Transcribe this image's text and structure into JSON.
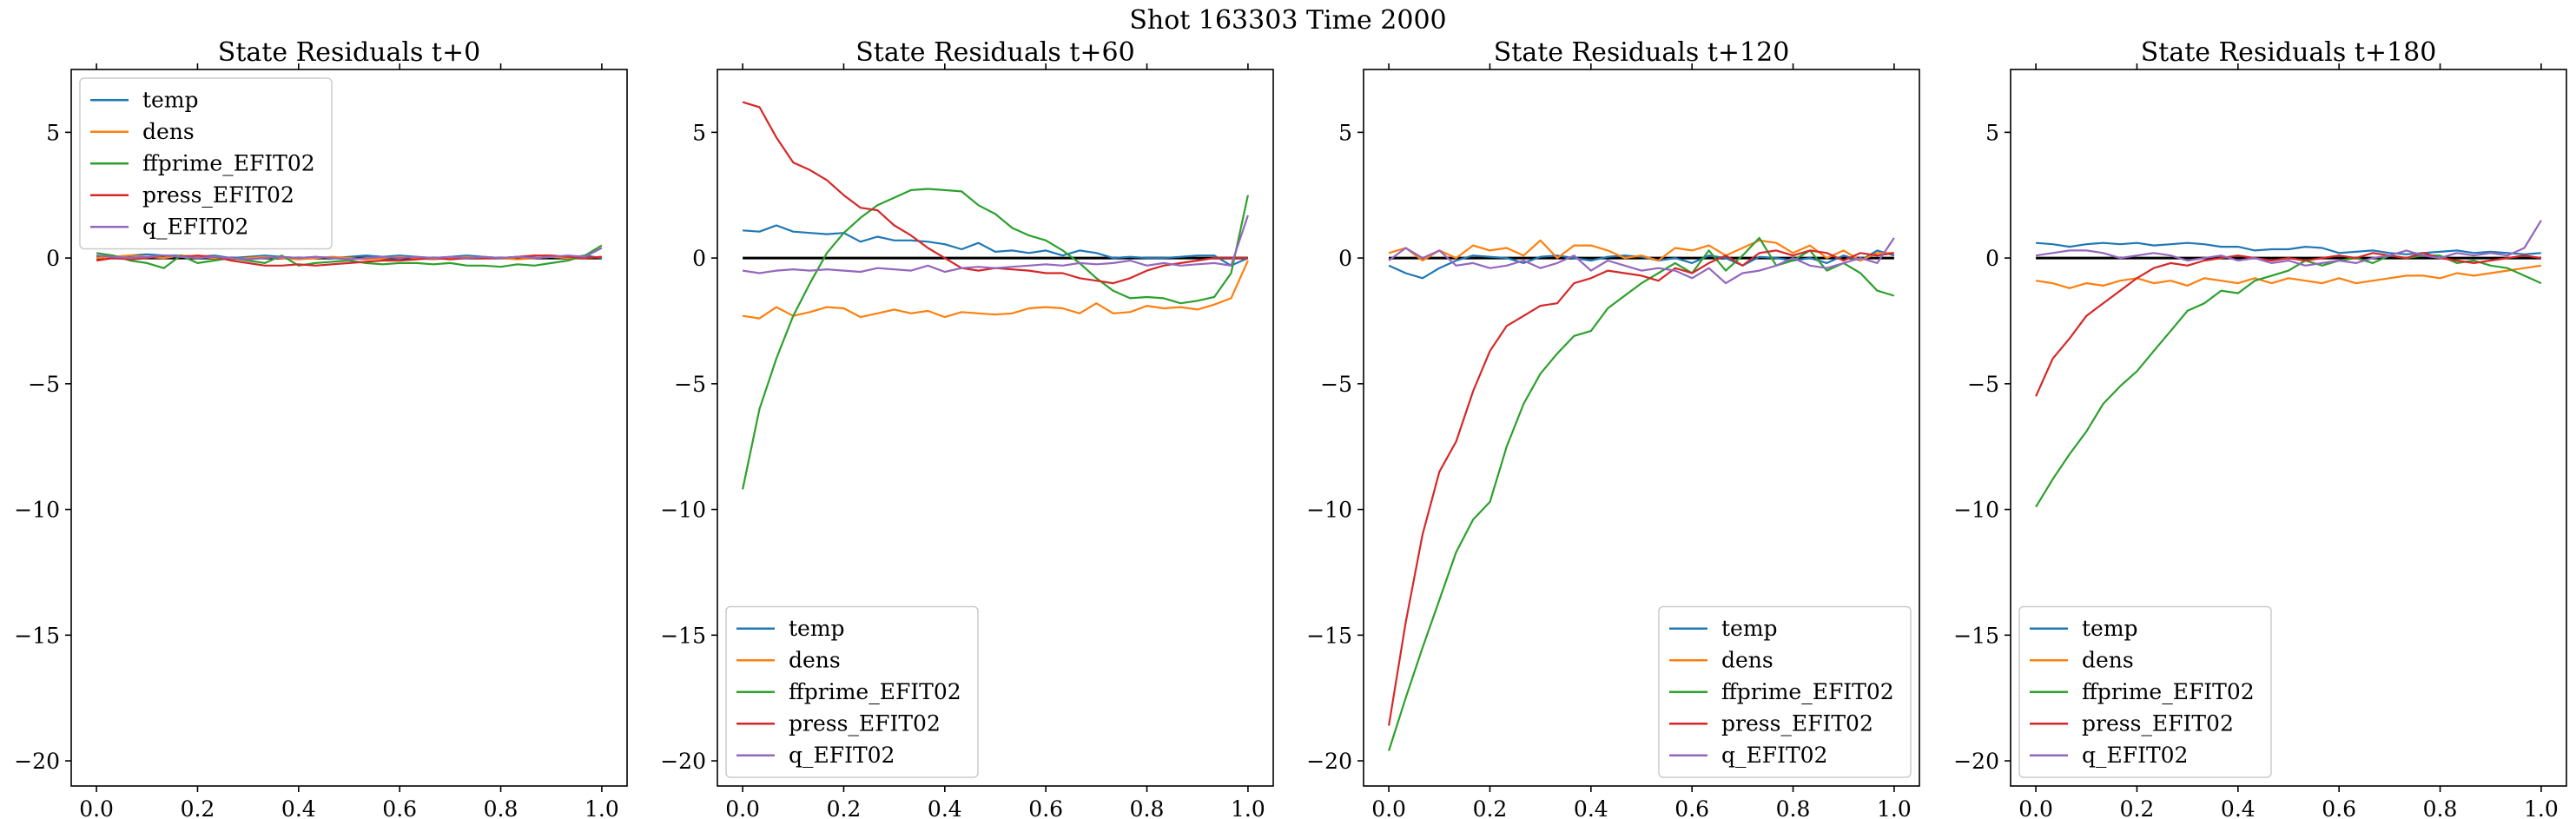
{
  "figure": {
    "suptitle": "Shot 163303   Time 2000",
    "colors": {
      "temp": "#1f77b4",
      "dens": "#ff7f0e",
      "ffprime_EFIT02": "#2ca02c",
      "press_EFIT02": "#d62728",
      "q_EFIT02": "#9467bd",
      "zero_line": "#000000"
    }
  },
  "chart_data": [
    {
      "type": "line",
      "title": "State Residuals t+0",
      "xlabel": "",
      "ylabel": "",
      "xlim": [
        -0.05,
        1.05
      ],
      "ylim": [
        -21,
        7.5
      ],
      "xticks": [
        "0.0",
        "0.2",
        "0.4",
        "0.6",
        "0.8",
        "1.0"
      ],
      "yticks": [
        "5",
        "0",
        "−5",
        "−10",
        "−15",
        "−20"
      ],
      "legend_position": "upper-left",
      "grid": false,
      "x": [
        0.0,
        0.0333,
        0.0667,
        0.1,
        0.1333,
        0.1667,
        0.2,
        0.2333,
        0.2667,
        0.3,
        0.3333,
        0.3667,
        0.4,
        0.4333,
        0.4667,
        0.5,
        0.5333,
        0.5667,
        0.6,
        0.6333,
        0.6667,
        0.7,
        0.7333,
        0.7667,
        0.8,
        0.8333,
        0.8667,
        0.9,
        0.9333,
        0.9667,
        1.0
      ],
      "series": [
        {
          "name": "temp",
          "values": [
            0.1,
            0.05,
            0.1,
            0.15,
            0.1,
            0.1,
            0.05,
            0.1,
            0.0,
            0.05,
            0.1,
            0.05,
            0.0,
            0.05,
            0.0,
            0.05,
            0.1,
            0.05,
            0.1,
            0.05,
            0.0,
            0.05,
            0.1,
            0.05,
            0.0,
            0.05,
            0.0,
            0.05,
            0.0,
            0.1,
            0.0
          ]
        },
        {
          "name": "dens",
          "values": [
            0.0,
            0.05,
            0.1,
            0.05,
            0.0,
            0.1,
            0.05,
            0.0,
            -0.05,
            0.0,
            0.05,
            0.0,
            -0.05,
            0.0,
            0.05,
            0.0,
            -0.05,
            0.0,
            0.05,
            0.0,
            -0.05,
            0.0,
            0.05,
            0.0,
            0.0,
            -0.05,
            0.0,
            0.05,
            0.0,
            0.0,
            0.05
          ]
        },
        {
          "name": "ffprime_EFIT02",
          "values": [
            0.2,
            0.1,
            -0.1,
            -0.2,
            -0.4,
            0.1,
            -0.2,
            -0.1,
            0.0,
            -0.1,
            -0.2,
            0.1,
            -0.3,
            -0.2,
            -0.15,
            -0.1,
            -0.2,
            -0.25,
            -0.2,
            -0.2,
            -0.25,
            -0.2,
            -0.3,
            -0.3,
            -0.35,
            -0.25,
            -0.3,
            -0.2,
            -0.1,
            0.1,
            0.5
          ]
        },
        {
          "name": "press_EFIT02",
          "values": [
            -0.1,
            0.0,
            -0.05,
            0.0,
            0.1,
            0.05,
            0.1,
            0.05,
            -0.1,
            -0.2,
            -0.3,
            -0.3,
            -0.25,
            -0.3,
            -0.25,
            -0.2,
            -0.15,
            -0.1,
            -0.1,
            -0.05,
            0.0,
            -0.05,
            0.0,
            0.0,
            0.0,
            0.05,
            0.1,
            0.1,
            0.05,
            0.0,
            0.05
          ]
        },
        {
          "name": "q_EFIT02",
          "values": [
            0.1,
            0.05,
            0.0,
            0.05,
            0.1,
            0.05,
            0.0,
            0.05,
            0.0,
            -0.05,
            0.0,
            0.05,
            0.0,
            0.05,
            0.0,
            -0.05,
            0.0,
            0.05,
            0.0,
            0.05,
            0.0,
            0.05,
            0.0,
            0.05,
            0.0,
            0.05,
            0.0,
            0.05,
            0.1,
            0.05,
            0.4
          ]
        }
      ]
    },
    {
      "type": "line",
      "title": "State Residuals t+60",
      "xlabel": "",
      "ylabel": "",
      "xlim": [
        -0.05,
        1.05
      ],
      "ylim": [
        -21,
        7.5
      ],
      "xticks": [
        "0.0",
        "0.2",
        "0.4",
        "0.6",
        "0.8",
        "1.0"
      ],
      "yticks": [
        "5",
        "0",
        "−5",
        "−10",
        "−15",
        "−20"
      ],
      "legend_position": "lower-left",
      "grid": false,
      "x": [
        0.0,
        0.0333,
        0.0667,
        0.1,
        0.1333,
        0.1667,
        0.2,
        0.2333,
        0.2667,
        0.3,
        0.3333,
        0.3667,
        0.4,
        0.4333,
        0.4667,
        0.5,
        0.5333,
        0.5667,
        0.6,
        0.6333,
        0.6667,
        0.7,
        0.7333,
        0.7667,
        0.8,
        0.8333,
        0.8667,
        0.9,
        0.9333,
        0.9667,
        1.0
      ],
      "series": [
        {
          "name": "temp",
          "values": [
            1.1,
            1.05,
            1.3,
            1.05,
            1.0,
            0.95,
            1.0,
            0.65,
            0.85,
            0.7,
            0.7,
            0.65,
            0.55,
            0.35,
            0.6,
            0.25,
            0.3,
            0.2,
            0.3,
            0.1,
            0.3,
            0.2,
            0.0,
            0.05,
            0.0,
            0.0,
            0.05,
            0.1,
            0.1,
            -0.3,
            0.0
          ]
        },
        {
          "name": "dens",
          "values": [
            -2.3,
            -2.4,
            -1.95,
            -2.3,
            -2.15,
            -1.95,
            -2.0,
            -2.35,
            -2.2,
            -2.05,
            -2.2,
            -2.1,
            -2.35,
            -2.15,
            -2.2,
            -2.25,
            -2.2,
            -2.0,
            -1.95,
            -2.0,
            -2.2,
            -1.8,
            -2.2,
            -2.15,
            -1.9,
            -2.0,
            -1.95,
            -2.05,
            -1.85,
            -1.6,
            -0.1
          ]
        },
        {
          "name": "ffprime_EFIT02",
          "values": [
            -9.2,
            -6.0,
            -4.0,
            -2.3,
            -1.0,
            0.2,
            1.0,
            1.6,
            2.1,
            2.4,
            2.7,
            2.75,
            2.7,
            2.65,
            2.1,
            1.75,
            1.2,
            0.9,
            0.7,
            0.3,
            -0.2,
            -0.8,
            -1.3,
            -1.6,
            -1.55,
            -1.6,
            -1.8,
            -1.7,
            -1.55,
            -0.6,
            2.5
          ]
        },
        {
          "name": "press_EFIT02",
          "values": [
            6.2,
            6.0,
            4.8,
            3.8,
            3.5,
            3.1,
            2.5,
            2.0,
            1.9,
            1.3,
            0.9,
            0.4,
            0.0,
            -0.4,
            -0.5,
            -0.4,
            -0.45,
            -0.5,
            -0.6,
            -0.6,
            -0.8,
            -0.9,
            -1.0,
            -0.8,
            -0.5,
            -0.3,
            -0.2,
            -0.1,
            0.0,
            0.0,
            0.0
          ]
        },
        {
          "name": "q_EFIT02",
          "values": [
            -0.5,
            -0.6,
            -0.5,
            -0.45,
            -0.5,
            -0.45,
            -0.5,
            -0.55,
            -0.4,
            -0.45,
            -0.5,
            -0.3,
            -0.55,
            -0.4,
            -0.35,
            -0.4,
            -0.35,
            -0.3,
            -0.25,
            -0.3,
            -0.2,
            -0.25,
            -0.2,
            -0.1,
            -0.3,
            -0.2,
            -0.3,
            -0.25,
            -0.2,
            -0.3,
            1.7
          ]
        }
      ]
    },
    {
      "type": "line",
      "title": "State Residuals t+120",
      "xlabel": "",
      "ylabel": "",
      "xlim": [
        -0.05,
        1.05
      ],
      "ylim": [
        -21,
        7.5
      ],
      "xticks": [
        "0.0",
        "0.2",
        "0.4",
        "0.6",
        "0.8",
        "1.0"
      ],
      "yticks": [
        "5",
        "0",
        "−5",
        "−10",
        "−15",
        "−20"
      ],
      "legend_position": "lower-right",
      "grid": false,
      "x": [
        0.0,
        0.0333,
        0.0667,
        0.1,
        0.1333,
        0.1667,
        0.2,
        0.2333,
        0.2667,
        0.3,
        0.3333,
        0.3667,
        0.4,
        0.4333,
        0.4667,
        0.5,
        0.5333,
        0.5667,
        0.6,
        0.6333,
        0.6667,
        0.7,
        0.7333,
        0.7667,
        0.8,
        0.8333,
        0.8667,
        0.9,
        0.9333,
        0.9667,
        1.0
      ],
      "series": [
        {
          "name": "temp",
          "values": [
            -0.3,
            -0.6,
            -0.8,
            -0.4,
            -0.1,
            0.1,
            0.05,
            0.0,
            -0.2,
            0.05,
            0.1,
            0.0,
            -0.1,
            0.05,
            0.1,
            0.05,
            -0.1,
            0.0,
            -0.2,
            0.1,
            0.0,
            -0.3,
            0.05,
            0.0,
            -0.1,
            0.0,
            -0.2,
            0.1,
            -0.1,
            0.3,
            0.1
          ]
        },
        {
          "name": "dens",
          "values": [
            0.2,
            0.4,
            -0.1,
            0.3,
            0.0,
            0.5,
            0.3,
            0.4,
            0.1,
            0.7,
            0.0,
            0.5,
            0.5,
            0.3,
            0.0,
            0.1,
            -0.1,
            0.4,
            0.3,
            0.5,
            0.1,
            0.4,
            0.7,
            0.6,
            0.2,
            0.5,
            0.0,
            0.3,
            -0.1,
            0.2,
            0.2
          ]
        },
        {
          "name": "ffprime_EFIT02",
          "values": [
            -19.6,
            -17.5,
            -15.5,
            -13.6,
            -11.7,
            -10.4,
            -9.7,
            -7.5,
            -5.8,
            -4.6,
            -3.8,
            -3.1,
            -2.9,
            -2.0,
            -1.5,
            -1.0,
            -0.6,
            -0.2,
            -0.6,
            0.3,
            -0.5,
            0.1,
            0.8,
            -0.3,
            -0.1,
            0.3,
            -0.5,
            -0.2,
            -0.6,
            -1.3,
            -1.5
          ]
        },
        {
          "name": "press_EFIT02",
          "values": [
            -18.6,
            -14.5,
            -11.0,
            -8.5,
            -7.3,
            -5.3,
            -3.7,
            -2.7,
            -2.3,
            -1.9,
            -1.8,
            -1.0,
            -0.8,
            -0.5,
            -0.6,
            -0.7,
            -0.9,
            -0.4,
            -0.6,
            -0.2,
            0.1,
            -0.3,
            0.2,
            0.3,
            0.1,
            0.3,
            0.2,
            -0.1,
            0.2,
            0.1,
            0.2
          ]
        },
        {
          "name": "q_EFIT02",
          "values": [
            -0.1,
            0.4,
            0.0,
            0.3,
            -0.3,
            -0.2,
            -0.4,
            -0.3,
            -0.1,
            -0.4,
            -0.2,
            0.1,
            -0.5,
            -0.1,
            -0.3,
            -0.5,
            -0.4,
            -0.5,
            -0.8,
            -0.4,
            -1.0,
            -0.6,
            -0.5,
            -0.3,
            0.0,
            -0.3,
            -0.4,
            -0.2,
            0.0,
            -0.2,
            0.8
          ]
        }
      ]
    },
    {
      "type": "line",
      "title": "State Residuals t+180",
      "xlabel": "",
      "ylabel": "",
      "xlim": [
        -0.05,
        1.05
      ],
      "ylim": [
        -21,
        7.5
      ],
      "xticks": [
        "0.0",
        "0.2",
        "0.4",
        "0.6",
        "0.8",
        "1.0"
      ],
      "yticks": [
        "5",
        "0",
        "−5",
        "−10",
        "−15",
        "−20"
      ],
      "legend_position": "lower-left",
      "grid": false,
      "x": [
        0.0,
        0.0333,
        0.0667,
        0.1,
        0.1333,
        0.1667,
        0.2,
        0.2333,
        0.2667,
        0.3,
        0.3333,
        0.3667,
        0.4,
        0.4333,
        0.4667,
        0.5,
        0.5333,
        0.5667,
        0.6,
        0.6333,
        0.6667,
        0.7,
        0.7333,
        0.7667,
        0.8,
        0.8333,
        0.8667,
        0.9,
        0.9333,
        0.9667,
        1.0
      ],
      "series": [
        {
          "name": "temp",
          "values": [
            0.6,
            0.55,
            0.45,
            0.55,
            0.6,
            0.55,
            0.6,
            0.5,
            0.55,
            0.6,
            0.55,
            0.45,
            0.45,
            0.3,
            0.35,
            0.35,
            0.45,
            0.4,
            0.2,
            0.25,
            0.3,
            0.2,
            0.15,
            0.2,
            0.25,
            0.3,
            0.2,
            0.25,
            0.2,
            0.15,
            0.2
          ]
        },
        {
          "name": "dens",
          "values": [
            -0.9,
            -1.0,
            -1.2,
            -1.0,
            -1.1,
            -0.9,
            -0.8,
            -1.0,
            -0.9,
            -1.1,
            -0.8,
            -0.9,
            -1.0,
            -0.8,
            -1.0,
            -0.8,
            -0.9,
            -1.0,
            -0.8,
            -1.0,
            -0.9,
            -0.8,
            -0.7,
            -0.7,
            -0.8,
            -0.6,
            -0.7,
            -0.6,
            -0.5,
            -0.4,
            -0.3
          ]
        },
        {
          "name": "ffprime_EFIT02",
          "values": [
            -9.9,
            -8.8,
            -7.8,
            -6.9,
            -5.8,
            -5.1,
            -4.5,
            -3.7,
            -2.9,
            -2.1,
            -1.8,
            -1.3,
            -1.4,
            -0.9,
            -0.7,
            -0.5,
            -0.1,
            -0.3,
            -0.1,
            0.0,
            -0.2,
            0.1,
            0.0,
            0.1,
            0.1,
            -0.2,
            -0.1,
            -0.3,
            -0.4,
            -0.7,
            -1.0
          ]
        },
        {
          "name": "press_EFIT02",
          "values": [
            -5.5,
            -4.0,
            -3.2,
            -2.3,
            -1.8,
            -1.3,
            -0.8,
            -0.4,
            -0.2,
            -0.3,
            -0.1,
            0.0,
            0.1,
            0.0,
            -0.1,
            0.0,
            -0.1,
            0.0,
            0.1,
            0.0,
            0.2,
            0.1,
            0.0,
            0.2,
            0.0,
            -0.1,
            -0.2,
            -0.1,
            0.0,
            0.1,
            0.0
          ]
        },
        {
          "name": "q_EFIT02",
          "values": [
            0.1,
            0.2,
            0.3,
            0.3,
            0.2,
            0.0,
            0.1,
            0.2,
            0.1,
            -0.1,
            0.0,
            0.1,
            -0.1,
            0.0,
            -0.2,
            -0.1,
            -0.3,
            -0.2,
            -0.1,
            -0.2,
            0.0,
            0.1,
            0.3,
            0.1,
            0.0,
            0.2,
            0.1,
            0.2,
            0.1,
            0.4,
            1.5
          ]
        }
      ]
    }
  ]
}
